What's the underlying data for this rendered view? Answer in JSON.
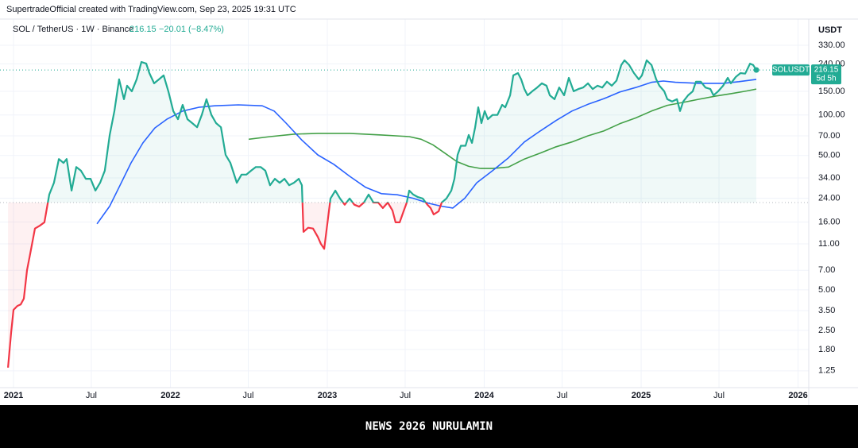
{
  "header": {
    "attribution": "SupertradeOfficial created with TradingView.com, Sep 23, 2025 19:31 UTC"
  },
  "chart_data": {
    "type": "line",
    "log_scale": true,
    "grid": true,
    "symbol": "SOL / TetherUS · 1W · Binance",
    "last_price": 216.15,
    "price_change": "−20.01 (−8.47%)",
    "price_tag": "SOLUSDT",
    "countdown": "5d 5h",
    "axis_unit": "USDT",
    "baseline": 22.3,
    "xlim": [
      2020.914,
      2026.068
    ],
    "xticks": [
      2021,
      {
        "value": 2021.496,
        "label": "Jul"
      },
      2022,
      {
        "value": 2022.496,
        "label": "Jul"
      },
      2023,
      {
        "value": 2023.496,
        "label": "Jul"
      },
      2024,
      {
        "value": 2024.496,
        "label": "Jul"
      },
      2025,
      {
        "value": 2025.496,
        "label": "Jul"
      },
      2026
    ],
    "ylim": [
      0.937,
      517
    ],
    "yticks": [
      {
        "value": 330,
        "label": "330.00"
      },
      {
        "value": 240,
        "label": "240.00"
      },
      {
        "value": 150,
        "label": "150.00"
      },
      {
        "value": 100,
        "label": "100.00"
      },
      {
        "value": 70,
        "label": "70.00"
      },
      {
        "value": 50,
        "label": "50.00"
      },
      {
        "value": 34,
        "label": "34.00"
      },
      {
        "value": 24,
        "label": "24.00"
      },
      {
        "value": 16,
        "label": "16.00"
      },
      {
        "value": 11,
        "label": "11.00"
      },
      {
        "value": 7,
        "label": "7.00"
      },
      {
        "value": 5,
        "label": "5.00"
      },
      {
        "value": 3.5,
        "label": "3.50"
      },
      {
        "value": 2.5,
        "label": "2.50"
      },
      {
        "value": 1.8,
        "label": "1.80"
      },
      {
        "value": 1.25,
        "label": "1.25"
      }
    ],
    "series": [
      {
        "color": "#22ab94",
        "color_below": "#f23645",
        "x": [
          2020.965,
          2020.985,
          2021.0,
          2021.025,
          2021.046,
          2021.066,
          2021.086,
          2021.106,
          2021.137,
          2021.167,
          2021.197,
          2021.228,
          2021.258,
          2021.289,
          2021.319,
          2021.339,
          2021.37,
          2021.4,
          2021.43,
          2021.461,
          2021.491,
          2021.522,
          2021.552,
          2021.582,
          2021.613,
          2021.643,
          2021.673,
          2021.704,
          2021.724,
          2021.754,
          2021.785,
          2021.815,
          2021.846,
          2021.866,
          2021.896,
          2021.927,
          2021.957,
          2021.987,
          2022.018,
          2022.048,
          2022.078,
          2022.109,
          2022.139,
          2022.17,
          2022.2,
          2022.23,
          2022.261,
          2022.291,
          2022.322,
          2022.352,
          2022.382,
          2022.423,
          2022.453,
          2022.484,
          2022.514,
          2022.544,
          2022.575,
          2022.605,
          2022.635,
          2022.666,
          2022.696,
          2022.727,
          2022.757,
          2022.787,
          2022.818,
          2022.838,
          2022.848,
          2022.878,
          2022.909,
          2022.939,
          2022.959,
          2022.98,
          2023.02,
          2023.051,
          2023.081,
          2023.111,
          2023.142,
          2023.172,
          2023.203,
          2023.233,
          2023.263,
          2023.294,
          2023.324,
          2023.354,
          2023.385,
          2023.415,
          2023.435,
          2023.461,
          2023.486,
          2023.506,
          2023.522,
          2023.547,
          2023.577,
          2023.608,
          2023.638,
          2023.658,
          2023.678,
          2023.709,
          2023.729,
          2023.759,
          2023.79,
          2023.81,
          2023.83,
          2023.851,
          2023.881,
          2023.901,
          2023.922,
          2023.942,
          2023.962,
          2023.982,
          2024.003,
          2024.023,
          2024.053,
          2024.084,
          2024.114,
          2024.134,
          2024.165,
          2024.185,
          2024.215,
          2024.235,
          2024.256,
          2024.276,
          2024.306,
          2024.337,
          2024.367,
          2024.397,
          2024.418,
          2024.448,
          2024.478,
          2024.509,
          2024.539,
          2024.57,
          2024.6,
          2024.63,
          2024.661,
          2024.691,
          2024.722,
          2024.752,
          2024.782,
          2024.813,
          2024.843,
          2024.873,
          2024.894,
          2024.924,
          2024.954,
          2024.985,
          2025.005,
          2025.035,
          2025.066,
          2025.096,
          2025.116,
          2025.147,
          2025.167,
          2025.197,
          2025.228,
          2025.248,
          2025.268,
          2025.299,
          2025.329,
          2025.349,
          2025.38,
          2025.41,
          2025.441,
          2025.461,
          2025.491,
          2025.522,
          2025.552,
          2025.572,
          2025.603,
          2025.633,
          2025.663,
          2025.694,
          2025.714,
          2025.734
        ],
        "values": [
          1.32,
          2.4,
          3.55,
          3.8,
          3.9,
          4.3,
          7.0,
          9.2,
          14.3,
          15.0,
          15.9,
          25.6,
          31.3,
          47,
          44,
          47,
          27.4,
          41,
          38.5,
          33.5,
          33.5,
          27.4,
          31.3,
          38.5,
          71,
          107,
          184,
          131,
          165,
          150,
          184,
          248,
          241,
          205,
          172,
          184,
          197,
          150,
          107,
          93,
          119,
          93,
          87,
          81,
          100,
          131,
          100,
          87,
          81,
          50.5,
          44,
          31.3,
          36,
          36,
          38.5,
          41,
          41,
          38.5,
          30,
          33.5,
          31.3,
          33.5,
          30,
          31.3,
          33.5,
          30,
          13.5,
          14.5,
          14.3,
          12.4,
          11,
          10.1,
          23.9,
          27.4,
          23.9,
          21.5,
          23.9,
          21.5,
          20.8,
          22.3,
          25.6,
          22.3,
          22.3,
          20.3,
          22.3,
          19.5,
          15.9,
          15.9,
          19.2,
          22.3,
          27.4,
          25.6,
          24.5,
          23.9,
          21.5,
          20.3,
          18.2,
          19.2,
          22.3,
          23.9,
          27.4,
          33.5,
          50.5,
          59,
          59,
          71,
          62,
          81,
          114,
          87,
          107,
          93,
          100,
          100,
          119,
          114,
          140,
          197,
          205,
          184,
          156,
          140,
          150,
          160,
          172,
          165,
          140,
          131,
          160,
          140,
          189,
          150,
          156,
          160,
          172,
          156,
          165,
          160,
          177,
          165,
          180,
          235,
          255,
          235,
          205,
          184,
          197,
          255,
          235,
          184,
          165,
          150,
          131,
          126,
          131,
          107,
          126,
          140,
          150,
          177,
          177,
          160,
          156,
          140,
          150,
          165,
          189,
          172,
          192,
          205,
          203,
          241,
          235,
          216.15
        ]
      },
      {
        "color": "#2962ff",
        "x": [
          2021.532,
          2021.613,
          2021.673,
          2021.749,
          2021.825,
          2021.901,
          2021.977,
          2022.078,
          2022.18,
          2022.281,
          2022.433,
          2022.585,
          2022.661,
          2022.737,
          2022.838,
          2022.939,
          2023.041,
          2023.142,
          2023.243,
          2023.344,
          2023.446,
          2023.547,
          2023.648,
          2023.724,
          2023.8,
          2023.876,
          2023.952,
          2024.053,
          2024.154,
          2024.256,
          2024.357,
          2024.458,
          2024.559,
          2024.661,
          2024.762,
          2024.863,
          2024.965,
          2025.066,
          2025.142,
          2025.218,
          2025.37,
          2025.522,
          2025.623,
          2025.734
        ],
        "values": [
          15.5,
          21,
          29,
          44,
          62,
          80,
          93,
          107,
          114,
          117,
          119,
          117,
          107,
          87,
          65,
          50.5,
          43,
          35,
          29,
          26,
          25.5,
          24,
          22,
          21,
          20.3,
          24,
          31.3,
          38.5,
          48,
          63,
          76,
          91,
          107,
          120,
          132,
          148,
          160,
          175,
          179,
          175,
          172,
          172,
          177,
          184
        ]
      },
      {
        "color": "#43a047",
        "x": [
          2022.499,
          2022.635,
          2022.787,
          2022.939,
          2023.142,
          2023.344,
          2023.522,
          2023.598,
          2023.673,
          2023.749,
          2023.825,
          2023.901,
          2023.977,
          2024.053,
          2024.154,
          2024.256,
          2024.357,
          2024.458,
          2024.559,
          2024.661,
          2024.762,
          2024.863,
          2024.965,
          2025.066,
          2025.167,
          2025.268,
          2025.37,
          2025.471,
          2025.572,
          2025.673,
          2025.734
        ],
        "values": [
          66,
          69,
          72,
          73,
          73,
          71,
          69,
          66,
          60,
          52,
          45,
          41.5,
          40,
          40,
          41,
          47,
          52,
          58,
          63,
          70,
          76,
          86,
          95,
          107,
          118,
          124,
          131,
          138,
          144,
          151,
          156
        ]
      }
    ]
  },
  "footer": {
    "text": "NEWS 2026 NURULAMIN"
  }
}
